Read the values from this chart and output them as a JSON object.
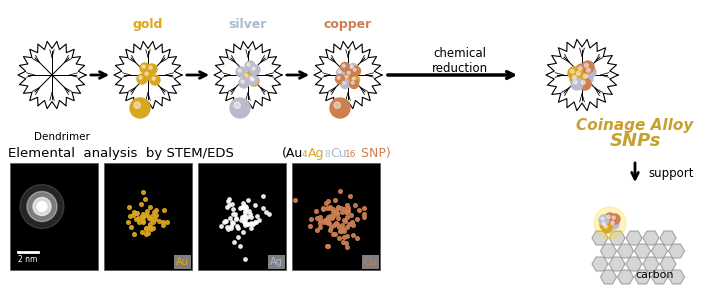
{
  "gold_color": "#DAA520",
  "silver_color": "#AABBCC",
  "copper_color": "#CD7F50",
  "bg_color": "#FFFFFF",
  "step_labels": [
    "gold",
    "silver",
    "copper"
  ],
  "step_colors": [
    "#DAA520",
    "#AABBCC",
    "#CD7F50"
  ],
  "dendrimer_label": "Dendrimer",
  "chemical_reduction_text": "chemical\nreduction",
  "support_text": "support",
  "carbon_text": "carbon",
  "coinage_line1": "Coinage Alloy",
  "coinage_line2": "SNPs",
  "elemental_title": "Elemental  analysis  by STEM/EDS",
  "panel_labels": [
    "Au",
    "Ag",
    "Cu"
  ],
  "panel_label_colors": [
    "#DAA520",
    "#AABBCC",
    "#CD7F50"
  ],
  "scalebar_text": "2 nm"
}
